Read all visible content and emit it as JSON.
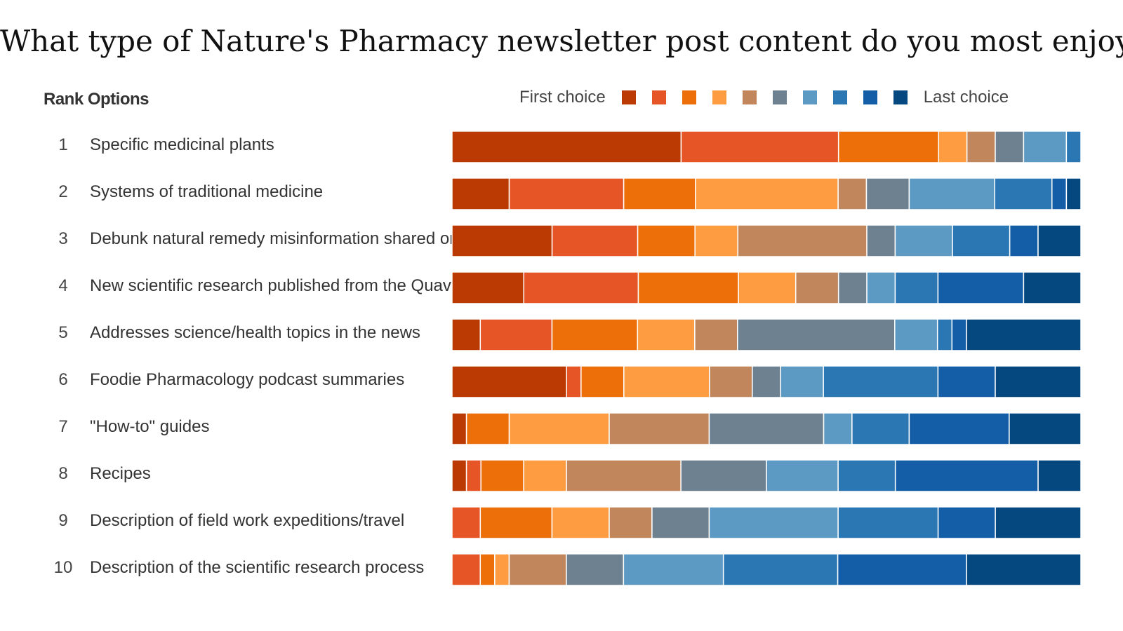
{
  "title": "What type of Nature's Pharmacy newsletter post content do you most enjoy?",
  "header": "Rank Options",
  "legend": {
    "first_label": "First choice",
    "last_label": "Last choice",
    "colors": [
      "#bb3a04",
      "#e65526",
      "#ec6f0a",
      "#fd9c40",
      "#c1865c",
      "#6e8191",
      "#5c9ac4",
      "#2a77b3",
      "#145ea8",
      "#05477f"
    ]
  },
  "chart_data": {
    "type": "bar",
    "orientation": "horizontal",
    "stacked": true,
    "title": "What type of Nature's Pharmacy newsletter post content do you most enjoy?",
    "ylabel": "Rank Options",
    "xlim": [
      0,
      100
    ],
    "legend_position": "top",
    "categories": [
      "Specific medicinal plants",
      "Systems of traditional medicine",
      "Debunk natural remedy misinformation shared online",
      "New scientific research published from the Quave Lab",
      "Addresses science/health topics in the news",
      "Foodie Pharmacology podcast summaries",
      "\"How-to\" guides",
      "Recipes",
      "Description of  field work expeditions/travel",
      "Description of the scientific research process"
    ],
    "ranks": [
      "1",
      "2",
      "3",
      "4",
      "5",
      "6",
      "7",
      "8",
      "9",
      "10"
    ],
    "series": [
      {
        "name": "First choice",
        "values": [
          36.4,
          9.1,
          15.9,
          11.4,
          4.5,
          18.2,
          2.3,
          2.3,
          0,
          0
        ]
      },
      {
        "name": "",
        "values": [
          25.0,
          18.2,
          13.6,
          18.2,
          11.4,
          2.3,
          0,
          2.3,
          4.5,
          4.5
        ]
      },
      {
        "name": "",
        "values": [
          15.9,
          11.4,
          9.1,
          15.9,
          13.6,
          6.8,
          6.8,
          6.8,
          11.4,
          2.3
        ]
      },
      {
        "name": "",
        "values": [
          4.5,
          22.7,
          6.8,
          9.1,
          9.1,
          13.6,
          15.9,
          6.8,
          9.1,
          2.3
        ]
      },
      {
        "name": "",
        "values": [
          4.5,
          4.5,
          20.5,
          6.8,
          6.8,
          6.8,
          15.9,
          18.2,
          6.8,
          9.1
        ]
      },
      {
        "name": "",
        "values": [
          4.5,
          6.8,
          4.5,
          4.5,
          25.0,
          4.5,
          18.2,
          13.6,
          9.1,
          9.1
        ]
      },
      {
        "name": "",
        "values": [
          6.8,
          13.6,
          9.1,
          4.5,
          6.8,
          6.8,
          4.5,
          11.4,
          20.5,
          15.9
        ]
      },
      {
        "name": "",
        "values": [
          2.3,
          9.1,
          9.1,
          6.8,
          2.3,
          18.2,
          9.1,
          9.1,
          15.9,
          18.2
        ]
      },
      {
        "name": "",
        "values": [
          0,
          2.3,
          4.5,
          13.6,
          2.3,
          9.1,
          15.9,
          22.7,
          9.1,
          20.5
        ]
      },
      {
        "name": "Last choice",
        "values": [
          0,
          2.3,
          6.8,
          9.1,
          18.2,
          13.6,
          11.4,
          6.8,
          13.6,
          18.2
        ]
      }
    ]
  }
}
